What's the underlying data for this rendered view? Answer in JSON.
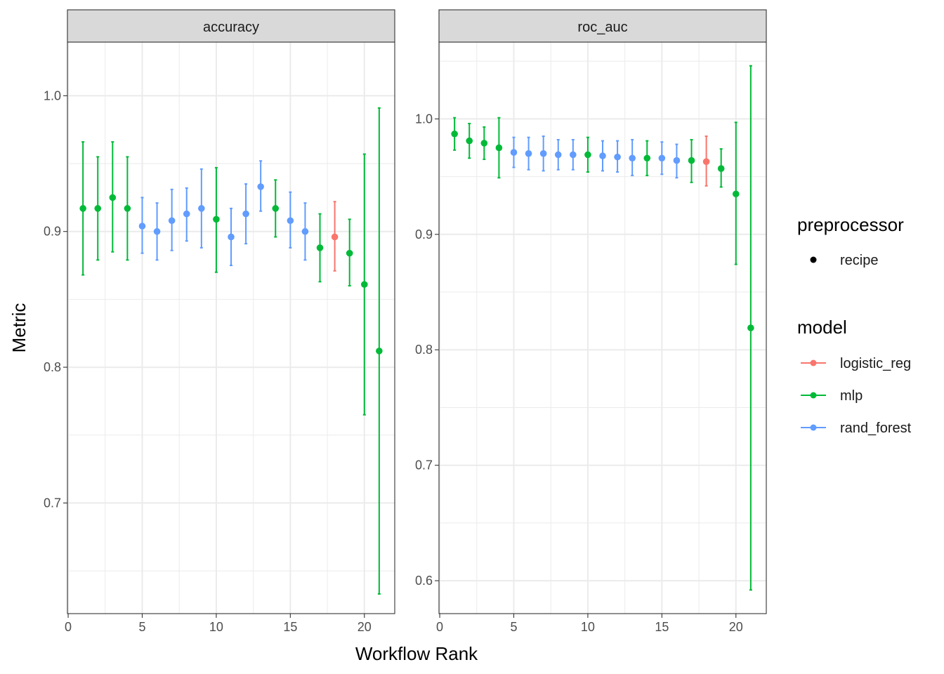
{
  "chart_data": {
    "type": "scatter",
    "variant": "pointrange-faceted",
    "xlabel": "Workflow Rank",
    "ylabel": "Metric",
    "legend_position": "right",
    "grid": true,
    "colors": {
      "logistic_reg": "#F8766D",
      "mlp": "#00BA38",
      "rand_forest": "#619CFF"
    },
    "legend": {
      "preprocessor": {
        "title": "preprocessor",
        "items": [
          "recipe"
        ]
      },
      "model": {
        "title": "model",
        "items": [
          "logistic_reg",
          "mlp",
          "rand_forest"
        ]
      }
    },
    "panels": [
      {
        "strip": "accuracy",
        "xlim": [
          -0.05,
          22.05
        ],
        "ylim": [
          0.6185,
          1.0395
        ],
        "x_breaks": [
          0,
          5,
          10,
          15,
          20
        ],
        "y_breaks": [
          0.7,
          0.8,
          0.9,
          1.0
        ],
        "y_tick_labels": [
          "0.7",
          "0.8",
          "0.9",
          "1.0"
        ],
        "points": [
          {
            "rank": 1,
            "model": "mlp",
            "mean": 0.917,
            "lower": 0.868,
            "upper": 0.966
          },
          {
            "rank": 2,
            "model": "mlp",
            "mean": 0.917,
            "lower": 0.879,
            "upper": 0.955
          },
          {
            "rank": 3,
            "model": "mlp",
            "mean": 0.925,
            "lower": 0.885,
            "upper": 0.966
          },
          {
            "rank": 4,
            "model": "mlp",
            "mean": 0.917,
            "lower": 0.879,
            "upper": 0.955
          },
          {
            "rank": 5,
            "model": "rand_forest",
            "mean": 0.904,
            "lower": 0.884,
            "upper": 0.925
          },
          {
            "rank": 6,
            "model": "rand_forest",
            "mean": 0.9,
            "lower": 0.879,
            "upper": 0.921
          },
          {
            "rank": 7,
            "model": "rand_forest",
            "mean": 0.908,
            "lower": 0.886,
            "upper": 0.931
          },
          {
            "rank": 8,
            "model": "rand_forest",
            "mean": 0.913,
            "lower": 0.893,
            "upper": 0.932
          },
          {
            "rank": 9,
            "model": "rand_forest",
            "mean": 0.917,
            "lower": 0.888,
            "upper": 0.946
          },
          {
            "rank": 10,
            "model": "mlp",
            "mean": 0.909,
            "lower": 0.87,
            "upper": 0.947
          },
          {
            "rank": 11,
            "model": "rand_forest",
            "mean": 0.896,
            "lower": 0.875,
            "upper": 0.917
          },
          {
            "rank": 12,
            "model": "rand_forest",
            "mean": 0.913,
            "lower": 0.891,
            "upper": 0.935
          },
          {
            "rank": 13,
            "model": "rand_forest",
            "mean": 0.933,
            "lower": 0.915,
            "upper": 0.952
          },
          {
            "rank": 14,
            "model": "mlp",
            "mean": 0.917,
            "lower": 0.896,
            "upper": 0.938
          },
          {
            "rank": 15,
            "model": "rand_forest",
            "mean": 0.908,
            "lower": 0.888,
            "upper": 0.929
          },
          {
            "rank": 16,
            "model": "rand_forest",
            "mean": 0.9,
            "lower": 0.879,
            "upper": 0.921
          },
          {
            "rank": 17,
            "model": "mlp",
            "mean": 0.888,
            "lower": 0.863,
            "upper": 0.913
          },
          {
            "rank": 18,
            "model": "logistic_reg",
            "mean": 0.896,
            "lower": 0.871,
            "upper": 0.922
          },
          {
            "rank": 19,
            "model": "mlp",
            "mean": 0.884,
            "lower": 0.86,
            "upper": 0.909
          },
          {
            "rank": 20,
            "model": "mlp",
            "mean": 0.861,
            "lower": 0.765,
            "upper": 0.957
          },
          {
            "rank": 21,
            "model": "mlp",
            "mean": 0.812,
            "lower": 0.633,
            "upper": 0.991
          }
        ]
      },
      {
        "strip": "roc_auc",
        "xlim": [
          -0.05,
          22.05
        ],
        "ylim": [
          0.5715,
          1.0665
        ],
        "x_breaks": [
          0,
          5,
          10,
          15,
          20
        ],
        "y_breaks": [
          0.6,
          0.7,
          0.8,
          0.9,
          1.0
        ],
        "y_tick_labels": [
          "0.6",
          "0.7",
          "0.8",
          "0.9",
          "1.0"
        ],
        "points": [
          {
            "rank": 1,
            "model": "mlp",
            "mean": 0.987,
            "lower": 0.973,
            "upper": 1.001
          },
          {
            "rank": 2,
            "model": "mlp",
            "mean": 0.981,
            "lower": 0.966,
            "upper": 0.996
          },
          {
            "rank": 3,
            "model": "mlp",
            "mean": 0.979,
            "lower": 0.965,
            "upper": 0.993
          },
          {
            "rank": 4,
            "model": "mlp",
            "mean": 0.975,
            "lower": 0.949,
            "upper": 1.001
          },
          {
            "rank": 5,
            "model": "rand_forest",
            "mean": 0.971,
            "lower": 0.958,
            "upper": 0.984
          },
          {
            "rank": 6,
            "model": "rand_forest",
            "mean": 0.97,
            "lower": 0.956,
            "upper": 0.984
          },
          {
            "rank": 7,
            "model": "rand_forest",
            "mean": 0.97,
            "lower": 0.955,
            "upper": 0.985
          },
          {
            "rank": 8,
            "model": "rand_forest",
            "mean": 0.969,
            "lower": 0.956,
            "upper": 0.982
          },
          {
            "rank": 9,
            "model": "rand_forest",
            "mean": 0.969,
            "lower": 0.956,
            "upper": 0.982
          },
          {
            "rank": 10,
            "model": "mlp",
            "mean": 0.969,
            "lower": 0.954,
            "upper": 0.984
          },
          {
            "rank": 11,
            "model": "rand_forest",
            "mean": 0.968,
            "lower": 0.955,
            "upper": 0.981
          },
          {
            "rank": 12,
            "model": "rand_forest",
            "mean": 0.967,
            "lower": 0.954,
            "upper": 0.981
          },
          {
            "rank": 13,
            "model": "rand_forest",
            "mean": 0.966,
            "lower": 0.951,
            "upper": 0.982
          },
          {
            "rank": 14,
            "model": "mlp",
            "mean": 0.966,
            "lower": 0.951,
            "upper": 0.981
          },
          {
            "rank": 15,
            "model": "rand_forest",
            "mean": 0.966,
            "lower": 0.952,
            "upper": 0.98
          },
          {
            "rank": 16,
            "model": "rand_forest",
            "mean": 0.964,
            "lower": 0.949,
            "upper": 0.978
          },
          {
            "rank": 17,
            "model": "mlp",
            "mean": 0.964,
            "lower": 0.945,
            "upper": 0.982
          },
          {
            "rank": 18,
            "model": "logistic_reg",
            "mean": 0.963,
            "lower": 0.942,
            "upper": 0.985
          },
          {
            "rank": 19,
            "model": "mlp",
            "mean": 0.957,
            "lower": 0.941,
            "upper": 0.974
          },
          {
            "rank": 20,
            "model": "mlp",
            "mean": 0.935,
            "lower": 0.874,
            "upper": 0.997
          },
          {
            "rank": 21,
            "model": "mlp",
            "mean": 0.819,
            "lower": 0.592,
            "upper": 1.046
          }
        ]
      }
    ]
  }
}
